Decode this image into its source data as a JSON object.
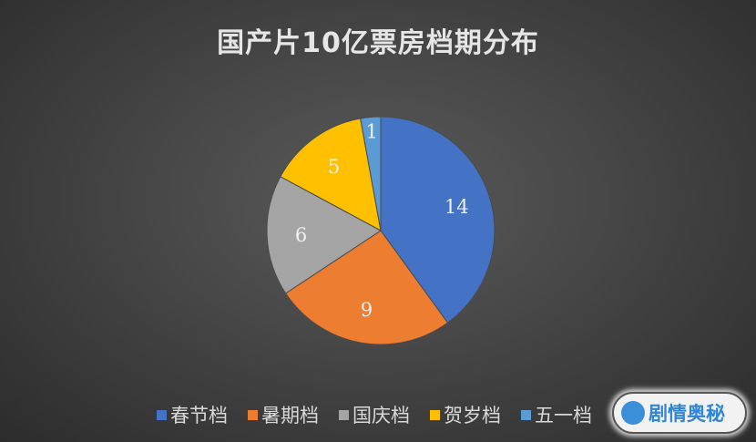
{
  "chart_data": {
    "type": "pie",
    "title": "国产片10亿票房档期分布",
    "categories": [
      "春节档",
      "暑期档",
      "国庆档",
      "贺岁档",
      "五一档"
    ],
    "values": [
      14,
      9,
      6,
      5,
      1
    ],
    "colors": [
      "#4472C4",
      "#ED7D31",
      "#A5A5A5",
      "#FFC000",
      "#5B9BD5"
    ],
    "legend_position": "bottom",
    "data_labels": true
  },
  "watermark": {
    "text": "剧情奥秘"
  }
}
